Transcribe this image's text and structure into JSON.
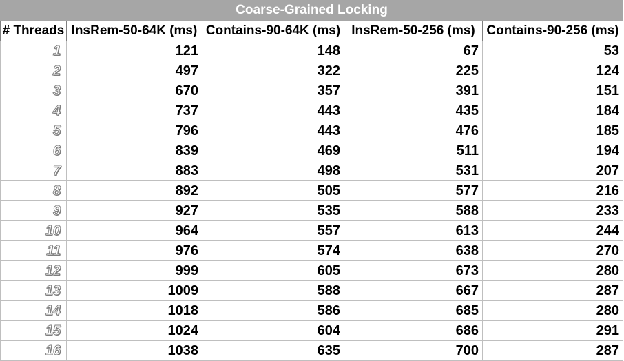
{
  "chart_data": {
    "type": "table",
    "title": "Coarse-Grained Locking",
    "columns": [
      "# Threads",
      "InsRem-50-64K (ms)",
      "Contains-90-64K (ms)",
      "InsRem-50-256 (ms)",
      "Contains-90-256 (ms)"
    ],
    "rows": [
      [
        1,
        121,
        148,
        67,
        53
      ],
      [
        2,
        497,
        322,
        225,
        124
      ],
      [
        3,
        670,
        357,
        391,
        151
      ],
      [
        4,
        737,
        443,
        435,
        184
      ],
      [
        5,
        796,
        443,
        476,
        185
      ],
      [
        6,
        839,
        469,
        511,
        194
      ],
      [
        7,
        883,
        498,
        531,
        207
      ],
      [
        8,
        892,
        505,
        577,
        216
      ],
      [
        9,
        927,
        535,
        588,
        233
      ],
      [
        10,
        964,
        557,
        613,
        244
      ],
      [
        11,
        976,
        574,
        638,
        270
      ],
      [
        12,
        999,
        605,
        673,
        280
      ],
      [
        13,
        1009,
        588,
        667,
        287
      ],
      [
        14,
        1018,
        586,
        685,
        280
      ],
      [
        15,
        1024,
        604,
        686,
        291
      ],
      [
        16,
        1038,
        635,
        700,
        287
      ]
    ]
  }
}
